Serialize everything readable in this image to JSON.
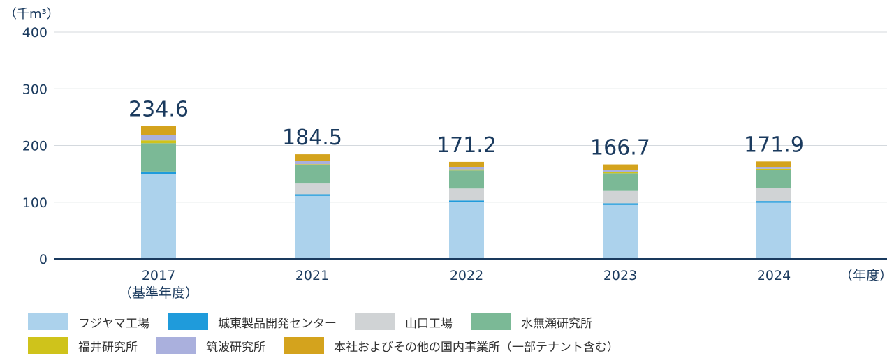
{
  "chart_data": {
    "type": "bar",
    "stacked": true,
    "y_unit": "（千m³）",
    "x_unit": "（年度）",
    "ylim": [
      0,
      400
    ],
    "yticks": [
      0,
      100,
      200,
      300,
      400
    ],
    "categories": [
      {
        "year": "2017",
        "sub": "（基準年度）"
      },
      {
        "year": "2021",
        "sub": ""
      },
      {
        "year": "2022",
        "sub": ""
      },
      {
        "year": "2023",
        "sub": ""
      },
      {
        "year": "2024",
        "sub": ""
      }
    ],
    "totals": [
      "234.6",
      "184.5",
      "171.2",
      "166.7",
      "171.9"
    ],
    "series": [
      {
        "name": "フジヤマ工場",
        "color": "#acd2ec",
        "values": [
          149,
          111,
          100,
          95,
          99
        ]
      },
      {
        "name": "城東製品開発センター",
        "color": "#1f9bdb",
        "values": [
          5,
          3,
          3,
          3,
          3
        ]
      },
      {
        "name": "山口工場",
        "color": "#d0d3d5",
        "values": [
          0,
          20,
          21,
          23,
          23
        ]
      },
      {
        "name": "水無瀬研究所",
        "color": "#7bb996",
        "values": [
          50,
          31,
          32,
          30,
          32
        ]
      },
      {
        "name": "福井研究所",
        "color": "#cfc31b",
        "values": [
          5,
          2,
          2,
          2,
          2
        ]
      },
      {
        "name": "筑波研究所",
        "color": "#aab0dd",
        "values": [
          9,
          6,
          4,
          4,
          3
        ]
      },
      {
        "name": "本社およびその他の国内事業所（一部テナント含む）",
        "color": "#d4a31d",
        "values": [
          16.6,
          11.5,
          9.2,
          9.7,
          9.9
        ]
      }
    ]
  },
  "legend_rows": [
    [
      0,
      1,
      2,
      3
    ],
    [
      4,
      5,
      6
    ]
  ]
}
